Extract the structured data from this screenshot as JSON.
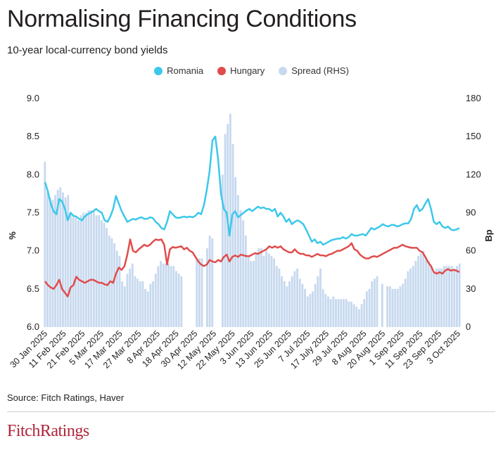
{
  "title": "Normalising Financing Conditions",
  "subtitle": "10-year local-currency bond yields",
  "source": "Source: Fitch Ratings, Haver",
  "logo_text": "FitchRatings",
  "colors": {
    "romania": "#3cc8ea",
    "hungary": "#e04c4c",
    "spread": "#c7d9ef"
  },
  "chart_data": {
    "type": "line",
    "title": "Normalising Financing Conditions",
    "subtitle": "10-year local-currency bond yields",
    "ylabel": "%",
    "ylabel_right": "Bp",
    "ylim": [
      6.0,
      9.0
    ],
    "ylim_right": [
      0,
      180
    ],
    "yticks": [
      "6.0",
      "6.5",
      "7.0",
      "7.5",
      "8.0",
      "8.5",
      "9.0"
    ],
    "yticks_right": [
      "0",
      "30",
      "60",
      "90",
      "120",
      "150",
      "180"
    ],
    "legend_position": "top-center",
    "grid": false,
    "xticks": [
      "30 Jan 2025",
      "11 Feb 2025",
      "21 Feb 2025",
      "5 Mar 2025",
      "17 Mar 2025",
      "27 Mar 2025",
      "8 Apr 2025",
      "18 Apr 2025",
      "30 Apr 2025",
      "12 May 2025",
      "22 May 2025",
      "3 Jun 2025",
      "13 Jun 2025",
      "25 Jun 2025",
      "7 Jul 2025",
      "17 July 2025",
      "29 Jul 2025",
      "8 Aug 2025",
      "20 Aug 2025",
      "1 Sep 2025",
      "11 Sep 2025",
      "23 Sep 2025",
      "3 Oct 2025"
    ],
    "series": [
      {
        "name": "Romania",
        "axis": "left",
        "kind": "line",
        "values": [
          7.9,
          7.78,
          7.62,
          7.52,
          7.48,
          7.68,
          7.65,
          7.55,
          7.4,
          7.5,
          7.46,
          7.45,
          7.42,
          7.4,
          7.45,
          7.48,
          7.5,
          7.52,
          7.55,
          7.52,
          7.5,
          7.4,
          7.38,
          7.45,
          7.55,
          7.72,
          7.62,
          7.52,
          7.45,
          7.38,
          7.4,
          7.42,
          7.41,
          7.43,
          7.44,
          7.42,
          7.42,
          7.44,
          7.43,
          7.38,
          7.35,
          7.3,
          7.28,
          7.38,
          7.52,
          7.48,
          7.44,
          7.43,
          7.44,
          7.45,
          7.44,
          7.45,
          7.44,
          7.46,
          7.5,
          7.48,
          7.6,
          7.8,
          8.05,
          8.45,
          8.5,
          8.2,
          7.75,
          7.55,
          7.5,
          7.2,
          7.48,
          7.52,
          7.44,
          7.47,
          7.5,
          7.53,
          7.55,
          7.52,
          7.55,
          7.58,
          7.56,
          7.57,
          7.55,
          7.55,
          7.52,
          7.55,
          7.45,
          7.5,
          7.45,
          7.38,
          7.42,
          7.35,
          7.38,
          7.4,
          7.38,
          7.35,
          7.28,
          7.2,
          7.12,
          7.15,
          7.1,
          7.12,
          7.08,
          7.1,
          7.12,
          7.14,
          7.15,
          7.16,
          7.16,
          7.18,
          7.16,
          7.18,
          7.22,
          7.2,
          7.2,
          7.21,
          7.22,
          7.2,
          7.25,
          7.3,
          7.28,
          7.3,
          7.32,
          7.35,
          7.33,
          7.32,
          7.34,
          7.34,
          7.32,
          7.33,
          7.35,
          7.36,
          7.36,
          7.42,
          7.55,
          7.6,
          7.52,
          7.55,
          7.62,
          7.68,
          7.55,
          7.38,
          7.35,
          7.38,
          7.32,
          7.3,
          7.32,
          7.28,
          7.27,
          7.28,
          7.3
        ]
      },
      {
        "name": "Hungary",
        "axis": "left",
        "kind": "line",
        "values": [
          6.6,
          6.55,
          6.52,
          6.5,
          6.55,
          6.62,
          6.5,
          6.45,
          6.4,
          6.52,
          6.55,
          6.66,
          6.62,
          6.6,
          6.58,
          6.6,
          6.62,
          6.62,
          6.6,
          6.58,
          6.58,
          6.56,
          6.55,
          6.6,
          6.58,
          6.7,
          6.78,
          6.75,
          6.8,
          6.95,
          7.15,
          7.0,
          6.98,
          7.02,
          7.05,
          7.08,
          7.06,
          7.08,
          7.12,
          7.15,
          7.14,
          7.15,
          7.08,
          6.82,
          7.02,
          7.05,
          7.04,
          7.05,
          7.06,
          7.02,
          7.04,
          7.0,
          6.98,
          6.92,
          6.86,
          6.82,
          6.8,
          6.82,
          6.88,
          6.86,
          6.85,
          6.88,
          6.86,
          6.92,
          6.95,
          6.86,
          6.92,
          6.94,
          6.92,
          6.95,
          6.94,
          6.93,
          6.93,
          6.95,
          6.97,
          6.96,
          6.98,
          7.0,
          7.02,
          7.06,
          7.04,
          7.06,
          7.04,
          7.06,
          7.02,
          7.0,
          6.98,
          6.98,
          7.02,
          6.98,
          6.96,
          6.96,
          6.94,
          6.94,
          6.92,
          6.94,
          6.96,
          6.94,
          6.94,
          6.93,
          6.95,
          6.96,
          6.98,
          7.0,
          7.0,
          7.02,
          7.04,
          7.06,
          7.1,
          7.02,
          7.0,
          6.95,
          6.92,
          6.9,
          6.9,
          6.92,
          6.93,
          6.92,
          6.94,
          6.96,
          6.98,
          7.0,
          7.02,
          7.04,
          7.04,
          7.06,
          7.08,
          7.06,
          7.05,
          7.04,
          7.04,
          7.04,
          7.0,
          6.98,
          6.92,
          6.85,
          6.8,
          6.72,
          6.7,
          6.72,
          6.7,
          6.74,
          6.76,
          6.74,
          6.75,
          6.74,
          6.72
        ]
      },
      {
        "name": "Spread (RHS)",
        "axis": "right",
        "kind": "bar",
        "values": [
          130,
          106,
          102,
          100,
          104,
          108,
          110,
          106,
          102,
          104,
          90,
          88,
          86,
          84,
          88,
          90,
          90,
          92,
          92,
          92,
          88,
          88,
          84,
          82,
          78,
          72,
          70,
          66,
          60,
          56,
          36,
          32,
          42,
          46,
          50,
          40,
          38,
          36,
          36,
          30,
          28,
          34,
          36,
          42,
          48,
          52,
          50,
          50,
          50,
          48,
          48,
          44,
          42,
          40,
          null,
          null,
          null,
          null,
          null,
          54,
          54,
          54,
          null,
          62,
          72,
          70,
          null,
          null,
          null,
          120,
          152,
          160,
          168,
          144,
          118,
          104,
          92,
          84,
          72,
          56,
          52,
          52,
          58,
          62,
          62,
          56,
          60,
          58,
          56,
          54,
          48,
          46,
          40,
          36,
          32,
          36,
          40,
          44,
          46,
          38,
          34,
          30,
          24,
          26,
          28,
          34,
          40,
          46,
          30,
          26,
          24,
          22,
          24,
          22,
          22,
          22,
          22,
          22,
          20,
          20,
          18,
          16,
          14,
          18,
          22,
          28,
          30,
          36,
          38,
          40,
          null,
          34,
          null,
          32,
          32,
          30,
          30,
          30,
          32,
          34,
          38,
          44,
          46,
          48,
          52,
          56,
          58,
          60,
          54,
          52,
          48,
          44,
          46,
          46,
          46,
          48,
          48,
          48,
          48,
          46,
          48,
          50
        ]
      }
    ]
  }
}
